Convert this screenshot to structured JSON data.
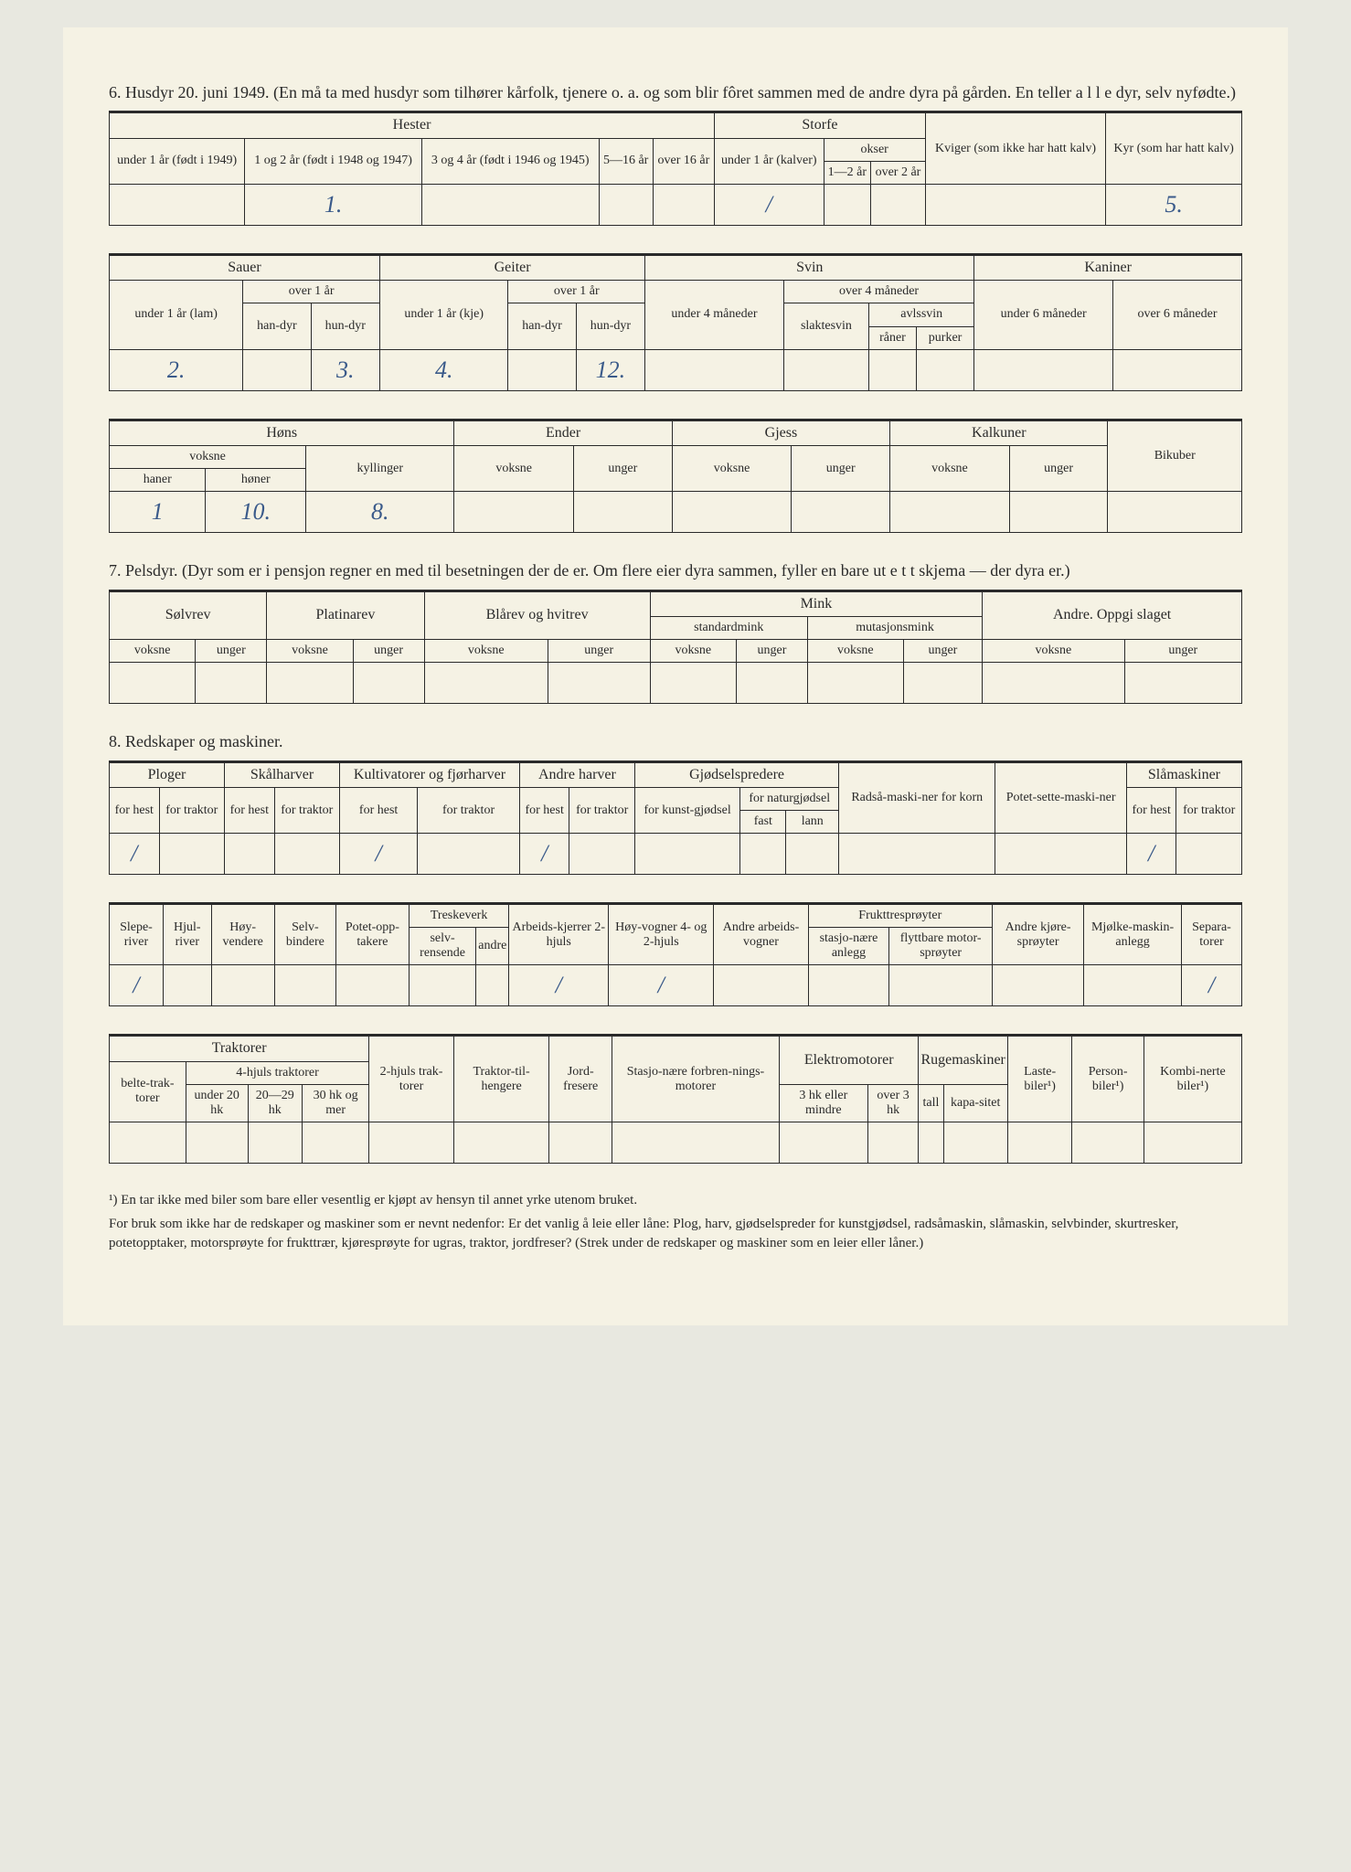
{
  "section6": {
    "heading": "6. Husdyr 20. juni 1949.  (En må ta med husdyr som tilhører kårfolk, tjenere o. a. og som blir fôret sammen med de andre dyra på gården.  En teller a l l e dyr, selv nyfødte.)",
    "groups": {
      "hester": "Hester",
      "storfe": "Storfe",
      "sauer": "Sauer",
      "geiter": "Geiter",
      "svin": "Svin",
      "kaniner": "Kaniner",
      "hons": "Høns",
      "ender": "Ender",
      "gjess": "Gjess",
      "kalkuner": "Kalkuner",
      "bikuber": "Bikuber"
    },
    "headers": {
      "hest_u1": "under 1 år (født i 1949)",
      "hest_12": "1 og 2 år (født i 1948 og 1947)",
      "hest_34": "3 og 4 år (født i 1946 og 1945)",
      "hest_516": "5—16 år",
      "hest_o16": "over 16 år",
      "storfe_u1": "under 1 år (kalver)",
      "okser": "okser",
      "okser_12": "1—2 år",
      "okser_o2": "over 2 år",
      "kviger": "Kviger (som ikke har hatt kalv)",
      "kyr": "Kyr (som har hatt kalv)",
      "sau_u1": "under 1 år (lam)",
      "over1": "over 1 år",
      "handyr": "han-dyr",
      "hundyr": "hun-dyr",
      "geit_u1": "under 1 år (kje)",
      "svin_u4": "under 4 måneder",
      "svin_o4": "over 4 måneder",
      "slaktesvin": "slaktesvin",
      "avlssvin": "avlssvin",
      "raner": "råner",
      "purker": "purker",
      "kan_u6": "under 6 måneder",
      "kan_o6": "over 6 måneder",
      "voksne_lbl": "voksne",
      "haner": "haner",
      "honer": "høner",
      "kyllinger": "kyllinger",
      "voksne": "voksne",
      "unger": "unger"
    },
    "values": {
      "hest_12": "1.",
      "storfe_u1": "/",
      "kyr": "5.",
      "sau_u1": "2.",
      "sau_hun": "3.",
      "geit_u1": "4.",
      "geit_hun": "12.",
      "haner": "1",
      "honer": "10.",
      "kyllinger": "8."
    }
  },
  "section7": {
    "heading": "7. Pelsdyr.  (Dyr som er i pensjon regner en med til besetningen der de er.  Om flere eier dyra sammen, fyller en bare ut e t t skjema — der dyra er.)",
    "groups": {
      "solvrev": "Sølvrev",
      "platinarev": "Platinarev",
      "blarev": "Blårev og hvitrev",
      "mink": "Mink",
      "stdmink": "standardmink",
      "mutmink": "mutasjonsmink",
      "andre": "Andre. Oppgi slaget"
    },
    "headers": {
      "voksne": "voksne",
      "unger": "unger"
    }
  },
  "section8": {
    "heading": "8. Redskaper og maskiner.",
    "row1_groups": {
      "ploger": "Ploger",
      "skalharver": "Skålharver",
      "kultivator": "Kultivatorer og fjørharver",
      "andreharver": "Andre harver",
      "gjodsel": "Gjødselspredere",
      "radsa": "Radså-maski-ner for korn",
      "potet": "Potet-sette-maski-ner",
      "slamask": "Slåmaskiner"
    },
    "row1_sub": {
      "forhest": "for hest",
      "fortraktor": "for traktor",
      "forkunst": "for kunst-gjødsel",
      "fornatur": "for naturgjødsel",
      "fast": "fast",
      "lann": "lann"
    },
    "row1_vals": {
      "plog_hest": "/",
      "kult_hest": "/",
      "harv_hest": "/",
      "sla_hest": "/"
    },
    "row2_groups": {
      "sleperiver": "Slepe-river",
      "hjulriver": "Hjul-river",
      "hoyvend": "Høy-vendere",
      "selvbind": "Selv-bindere",
      "potetopp": "Potet-opp-takere",
      "treskeverk": "Treskeverk",
      "selvrens": "selv-rensende",
      "andre": "andre",
      "arbkjerrer": "Arbeids-kjerrer 2-hjuls",
      "hoyvogner": "Høy-vogner 4- og 2-hjuls",
      "andrearbv": "Andre arbeids-vogner",
      "frukttre": "Frukttresprøyter",
      "stasjo": "stasjo-nære anlegg",
      "flyttbare": "flyttbare motor-sprøyter",
      "andrekjore": "Andre kjøre-sprøyter",
      "mjolke": "Mjølke-maskin-anlegg",
      "separa": "Separa-torer"
    },
    "row2_vals": {
      "sleperiver": "/",
      "arbkjerrer": "/",
      "hoyvogner": "/",
      "separa": "/"
    },
    "row3_groups": {
      "traktorer": "Traktorer",
      "belte": "belte-trak-torer",
      "hjuls4": "4-hjuls traktorer",
      "u20": "under 20 hk",
      "hk2029": "20—29 hk",
      "hk30": "30 hk og mer",
      "hjuls2": "2-hjuls trak-torer",
      "tilhenger": "Traktor-til-hengere",
      "jordfres": "Jord-fresere",
      "stasjonaere": "Stasjo-nære forbren-nings-motorer",
      "elektro": "Elektromotorer",
      "hk3mindre": "3 hk eller mindre",
      "over3hk": "over 3 hk",
      "ruge": "Rugemaskiner",
      "tall": "tall",
      "kapasitet": "kapa-sitet",
      "laste": "Laste-biler¹)",
      "person": "Person-biler¹)",
      "kombi": "Kombi-nerte biler¹)"
    }
  },
  "footnote": "¹) En tar ikke med biler som bare eller vesentlig er kjøpt av hensyn til annet yrke utenom bruket.",
  "bottom_note": "For bruk som ikke har de redskaper og maskiner som er nevnt nedenfor:  Er det vanlig å leie eller låne:  Plog, harv, gjødselspreder for kunstgjødsel, radsåmaskin, slåmaskin, selvbinder, skurtresker, potetopptaker, motorsprøyte for frukttrær, kjøresprøyte for ugras, traktor, jordfreser?  (Strek under de redskaper og maskiner som en leier eller låner.)"
}
